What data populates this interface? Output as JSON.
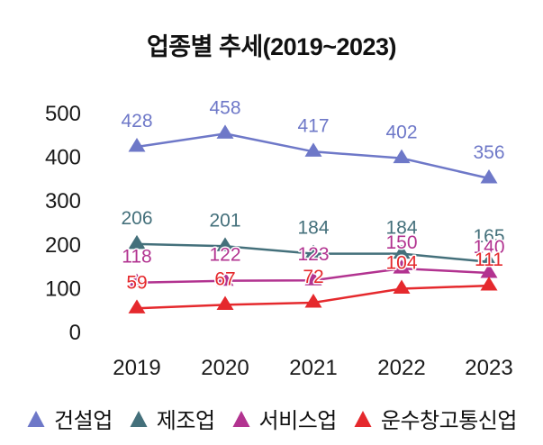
{
  "title": "업종별 추세(2019~2023)",
  "text_color": "#1a1a1a",
  "background_color": "#ffffff",
  "chart_data": {
    "type": "line",
    "title": "업종별 추세(2019~2023)",
    "categories": [
      "2019",
      "2020",
      "2021",
      "2022",
      "2023"
    ],
    "series": [
      {
        "name": "건설업",
        "color": "#6e78c8",
        "values": [
          428,
          458,
          417,
          402,
          356
        ]
      },
      {
        "name": "제조업",
        "color": "#44707b",
        "values": [
          206,
          201,
          184,
          184,
          165
        ]
      },
      {
        "name": "서비스업",
        "color": "#b23390",
        "values": [
          118,
          122,
          123,
          150,
          140
        ]
      },
      {
        "name": "운수창고통신업",
        "color": "#e5292d",
        "values": [
          59,
          67,
          72,
          104,
          111
        ]
      }
    ],
    "ylim": [
      0,
      500
    ],
    "yticks": [
      0,
      100,
      200,
      300,
      400,
      500
    ],
    "xlabel": "",
    "ylabel": "",
    "grid": false,
    "axis_lines": false,
    "data_labels": true,
    "marker": "triangle-up",
    "legend_position": "bottom"
  }
}
